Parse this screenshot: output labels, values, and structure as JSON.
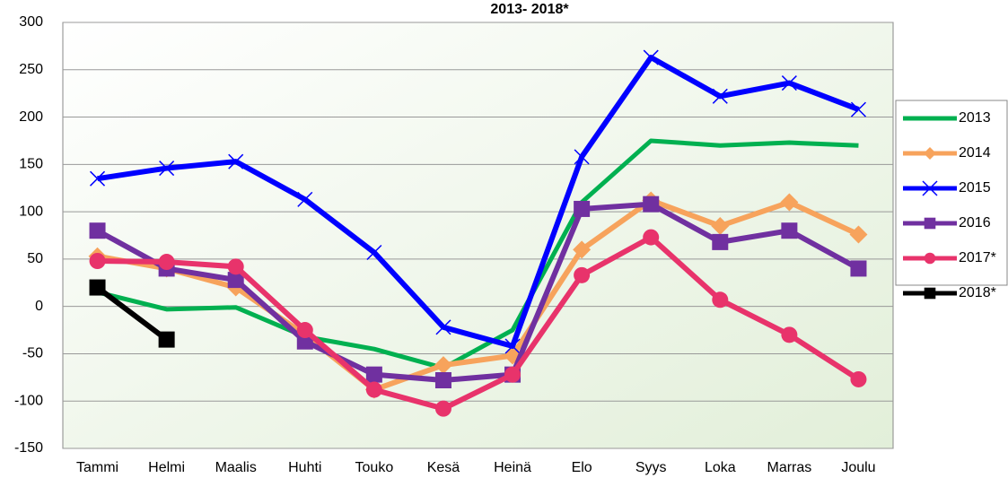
{
  "chart_data": {
    "type": "line",
    "title": "2013- 2018*",
    "categories": [
      "Tammi",
      "Helmi",
      "Maalis",
      "Huhti",
      "Touko",
      "Kesä",
      "Heinä",
      "Elo",
      "Syys",
      "Loka",
      "Marras",
      "Joulu"
    ],
    "ylim": [
      -150,
      300
    ],
    "yticks": [
      -150,
      -100,
      -50,
      0,
      50,
      100,
      150,
      200,
      250,
      300
    ],
    "grid": true,
    "series": [
      {
        "name": "2013",
        "color": "#00b050",
        "marker": "none",
        "values": [
          15,
          -3,
          -1,
          -32,
          -45,
          -65,
          -25,
          110,
          175,
          170,
          173,
          170
        ]
      },
      {
        "name": "2014",
        "color": "#f7a35c",
        "marker": "diamond",
        "values": [
          53,
          40,
          20,
          -30,
          -88,
          -62,
          -52,
          60,
          112,
          85,
          110,
          76
        ]
      },
      {
        "name": "2015",
        "color": "#0000ff",
        "marker": "cross",
        "values": [
          135,
          146,
          153,
          113,
          57,
          -22,
          -42,
          158,
          263,
          222,
          236,
          208
        ]
      },
      {
        "name": "2016",
        "color": "#7030a0",
        "marker": "square",
        "values": [
          80,
          40,
          28,
          -37,
          -72,
          -78,
          -72,
          103,
          108,
          68,
          80,
          40
        ]
      },
      {
        "name": "2017*",
        "color": "#e8336b",
        "marker": "circle",
        "values": [
          48,
          47,
          42,
          -25,
          -88,
          -108,
          -72,
          33,
          73,
          7,
          -30,
          -77
        ]
      },
      {
        "name": "2018*",
        "color": "#000000",
        "marker": "square",
        "values": [
          20,
          -35,
          null,
          null,
          null,
          null,
          null,
          null,
          null,
          null,
          null,
          null
        ]
      }
    ]
  }
}
